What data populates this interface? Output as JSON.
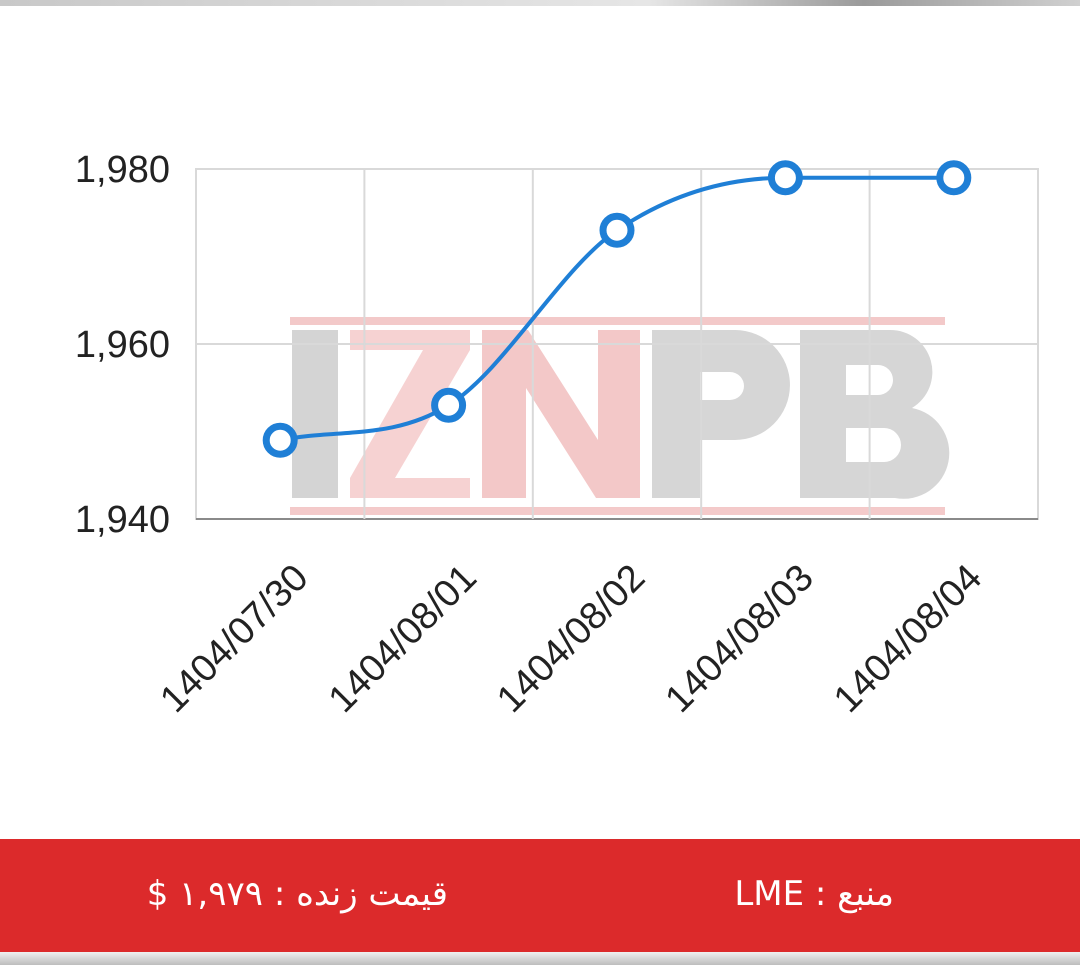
{
  "chart_data": {
    "type": "line",
    "x": [
      "1404/07/30",
      "1404/08/01",
      "1404/08/02",
      "1404/08/03",
      "1404/08/04"
    ],
    "series": [
      {
        "values": [
          1949,
          1953,
          1973,
          1979,
          1979
        ]
      }
    ],
    "ylim": [
      1940,
      1980
    ],
    "yticks": [
      "1,980",
      "1,960",
      "1,940"
    ],
    "xticks": [
      "1404/07/30",
      "1404/08/01",
      "1404/08/02",
      "1404/08/03",
      "1404/08/04"
    ],
    "grid": true,
    "line_color": "#1f7fd6",
    "watermark": "IZNPB"
  },
  "footer": {
    "price_text": "قیمت زنده : ۱,۹۷۹ $",
    "source_text": "منبع : LME",
    "background_color": "#dc2a2b"
  }
}
